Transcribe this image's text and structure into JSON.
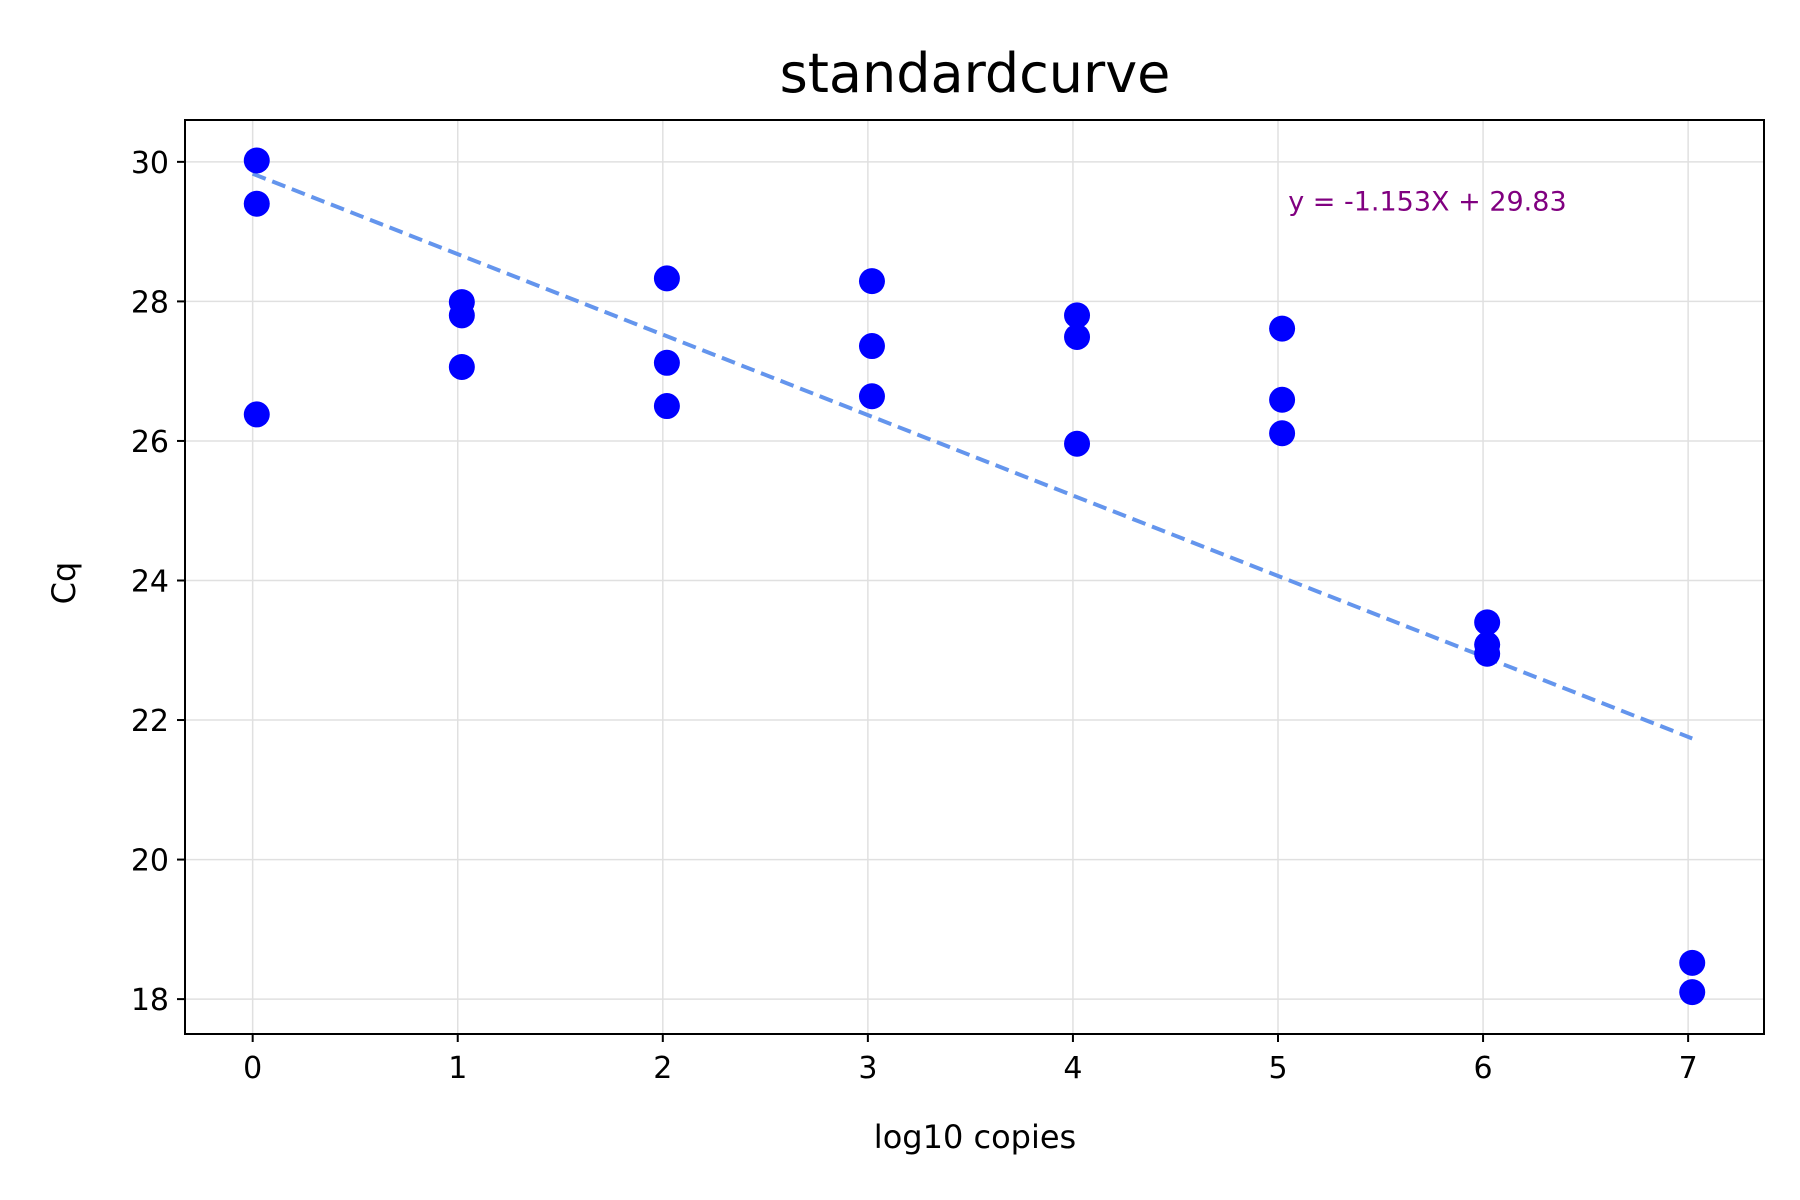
{
  "chart_data": {
    "type": "scatter",
    "title": "standardcurve",
    "xlabel": "log10 copies",
    "ylabel": "Cq",
    "xlim": [
      -0.33,
      7.37
    ],
    "ylim": [
      17.5,
      30.6
    ],
    "xticks": [
      0,
      1,
      2,
      3,
      4,
      5,
      6,
      7
    ],
    "yticks": [
      18,
      20,
      22,
      24,
      26,
      28,
      30
    ],
    "grid": true,
    "point_color": "#0000ff",
    "points": [
      {
        "x": 0.02,
        "y": 30.02
      },
      {
        "x": 0.02,
        "y": 29.4
      },
      {
        "x": 0.02,
        "y": 26.38
      },
      {
        "x": 1.02,
        "y": 27.99
      },
      {
        "x": 1.02,
        "y": 27.8
      },
      {
        "x": 1.02,
        "y": 27.06
      },
      {
        "x": 2.02,
        "y": 28.33
      },
      {
        "x": 2.02,
        "y": 27.12
      },
      {
        "x": 2.02,
        "y": 26.5
      },
      {
        "x": 3.02,
        "y": 28.29
      },
      {
        "x": 3.02,
        "y": 27.36
      },
      {
        "x": 3.02,
        "y": 26.64
      },
      {
        "x": 4.02,
        "y": 27.8
      },
      {
        "x": 4.02,
        "y": 27.49
      },
      {
        "x": 4.02,
        "y": 25.96
      },
      {
        "x": 5.02,
        "y": 27.61
      },
      {
        "x": 5.02,
        "y": 26.59
      },
      {
        "x": 5.02,
        "y": 26.11
      },
      {
        "x": 6.02,
        "y": 23.4
      },
      {
        "x": 6.02,
        "y": 23.08
      },
      {
        "x": 6.02,
        "y": 22.95
      },
      {
        "x": 7.02,
        "y": 18.52
      },
      {
        "x": 7.02,
        "y": 18.1
      }
    ],
    "fit_line": {
      "slope": -1.153,
      "intercept": 29.83,
      "x_range": [
        0,
        7.02
      ],
      "color": "#6495ed",
      "style": "dashed"
    },
    "annotation": {
      "text": "y = -1.153X + 29.83",
      "color": "#800080",
      "x": 5.05,
      "y": 29.3
    }
  }
}
